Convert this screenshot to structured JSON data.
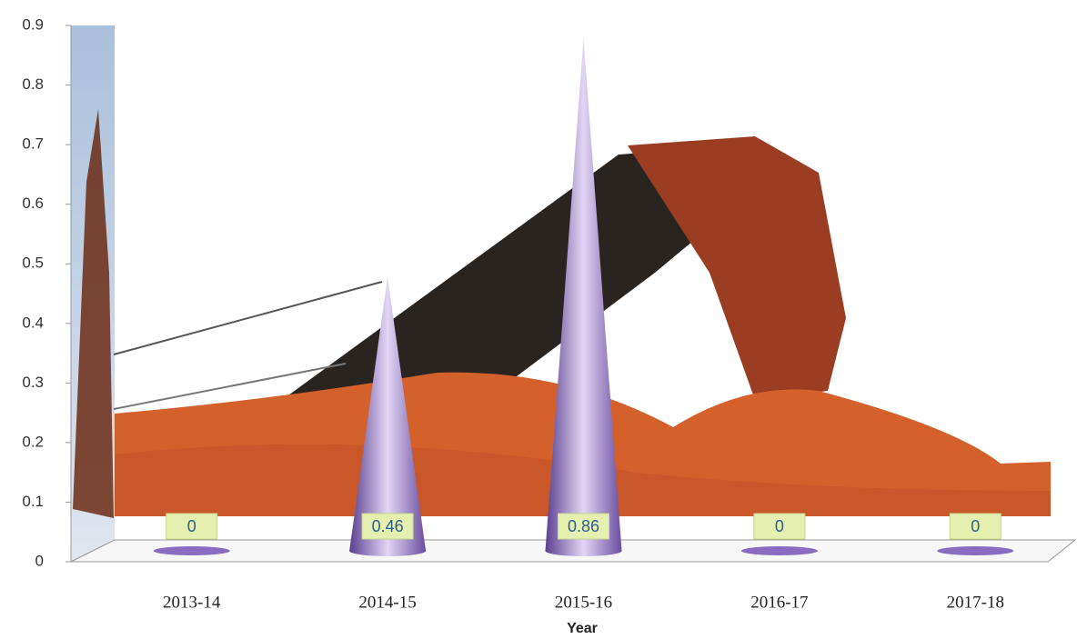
{
  "chart_data": {
    "type": "cone",
    "x_label": "Year",
    "categories": [
      "2013-14",
      "2014-15",
      "2015-16",
      "2016-17",
      "2017-18"
    ],
    "values": [
      0,
      0.46,
      0.86,
      0,
      0
    ],
    "color": "#8a6cc0",
    "ylim": [
      0,
      0.9
    ],
    "yticks": [
      0,
      0.1,
      0.2,
      0.3,
      0.4,
      0.5,
      0.6,
      0.7,
      0.8,
      0.9
    ]
  }
}
